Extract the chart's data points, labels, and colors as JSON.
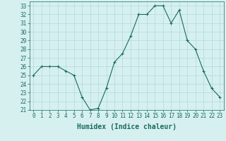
{
  "x": [
    0,
    1,
    2,
    3,
    4,
    5,
    6,
    7,
    8,
    9,
    10,
    11,
    12,
    13,
    14,
    15,
    16,
    17,
    18,
    19,
    20,
    21,
    22,
    23
  ],
  "y": [
    25,
    26,
    26,
    26,
    25.5,
    25,
    22.5,
    21,
    21.2,
    23.5,
    26.5,
    27.5,
    29.5,
    32,
    32,
    33,
    33,
    31,
    32.5,
    29,
    28,
    25.5,
    23.5,
    22.5
  ],
  "line_color": "#1a6b5a",
  "marker": "+",
  "bg_color": "#d6f0f0",
  "grid_color": "#b0dada",
  "xlabel": "Humidex (Indice chaleur)",
  "ylim": [
    21,
    33.5
  ],
  "xlim": [
    -0.5,
    23.5
  ],
  "yticks": [
    21,
    22,
    23,
    24,
    25,
    26,
    27,
    28,
    29,
    30,
    31,
    32,
    33
  ],
  "xticks": [
    0,
    1,
    2,
    3,
    4,
    5,
    6,
    7,
    8,
    9,
    10,
    11,
    12,
    13,
    14,
    15,
    16,
    17,
    18,
    19,
    20,
    21,
    22,
    23
  ],
  "tick_fontsize": 5.5,
  "xlabel_fontsize": 7
}
